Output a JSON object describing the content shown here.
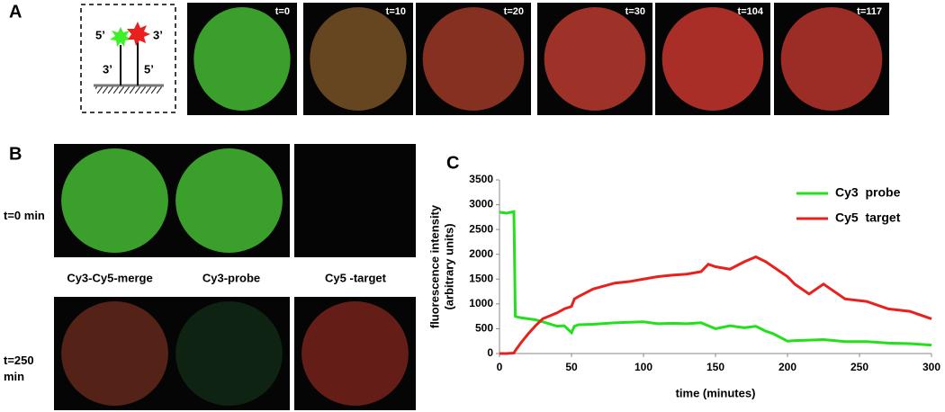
{
  "panel_a": {
    "label": "A",
    "schematic": [
      "5’",
      "3’",
      "3’",
      "5’"
    ],
    "frames": [
      "t=0",
      "t=10",
      "t=20",
      "t=30",
      "t=104",
      "t=117"
    ]
  },
  "panel_b": {
    "label": "B",
    "rows": [
      "t=0 min",
      "t=250 min"
    ],
    "columns": [
      "Cy3-Cy5-merge",
      "Cy3-probe",
      "Cy5 -target"
    ]
  },
  "chart_data": {
    "type": "line",
    "label": "C",
    "x_label": "time (minutes)",
    "y_label": [
      "fluorescence intensity",
      "(arbitrary units)"
    ],
    "x": [
      0,
      5,
      10,
      11,
      12,
      15,
      20,
      25,
      30,
      40,
      45,
      50,
      52,
      55,
      65,
      80,
      90,
      100,
      110,
      120,
      130,
      140,
      145,
      150,
      160,
      170,
      178,
      185,
      190,
      200,
      205,
      215,
      225,
      240,
      255,
      270,
      285,
      300
    ],
    "series": [
      {
        "name": "Cy3  probe",
        "color": "#22e01a",
        "values": [
          2850,
          2830,
          2860,
          750,
          740,
          720,
          700,
          680,
          640,
          550,
          560,
          420,
          550,
          580,
          590,
          620,
          630,
          640,
          600,
          610,
          600,
          620,
          560,
          500,
          560,
          520,
          550,
          450,
          400,
          250,
          260,
          270,
          280,
          240,
          240,
          210,
          200,
          170
        ]
      },
      {
        "name": "Cy5  target",
        "color": "#e8201e",
        "values": [
          0,
          0,
          10,
          60,
          100,
          220,
          400,
          560,
          700,
          820,
          900,
          950,
          1100,
          1150,
          1300,
          1420,
          1450,
          1500,
          1550,
          1580,
          1600,
          1650,
          1800,
          1750,
          1700,
          1850,
          1950,
          1850,
          1750,
          1550,
          1400,
          1200,
          1400,
          1100,
          1050,
          900,
          850,
          700
        ]
      }
    ],
    "xlim": [
      0,
      300
    ],
    "xticks": [
      0,
      50,
      100,
      150,
      200,
      250,
      300
    ],
    "ylim": [
      0,
      3500
    ],
    "yticks": [
      0,
      500,
      1000,
      1500,
      2000,
      2500,
      3000,
      3500
    ]
  }
}
